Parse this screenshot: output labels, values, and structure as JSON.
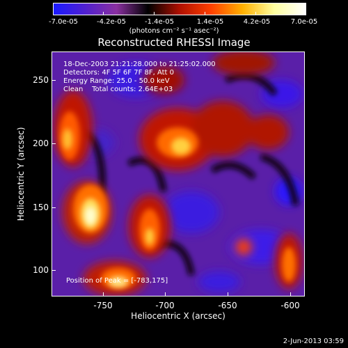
{
  "colorbar": {
    "tick_labels": [
      "-7.0e-05",
      "-4.2e-05",
      "-1.4e-05",
      "1.4e-05",
      "4.2e-05",
      "7.0e-05"
    ],
    "units": "(photons cm⁻² s⁻¹ asec⁻²)",
    "colors": [
      "#1a1aff",
      "#5020d0",
      "#8a30a0",
      "#000000",
      "#b01000",
      "#ff4000",
      "#ffb000",
      "#ffffa0",
      "#ffffff"
    ]
  },
  "plot": {
    "title": "Reconstructed RHESSI Image",
    "xlabel": "Heliocentric X (arcsec)",
    "ylabel": "Heliocentric Y (arcsec)",
    "x_ticks": [
      "-750",
      "-700",
      "-650",
      "-600"
    ],
    "y_ticks": [
      "250",
      "200",
      "150",
      "100"
    ],
    "xlim": [
      -790,
      -596
    ],
    "ylim": [
      83,
      275
    ]
  },
  "annotation": {
    "line1": "18-Dec-2003 21:21:28.000 to 21:25:02.000",
    "line2": "Detectors: 4F 5F 6F 7F 8F, Att 0",
    "line3": "Energy Range: 25.0 - 50.0 keV",
    "line4": "Clean    Total counts: 2.64E+03",
    "peak": "Position of Peak = [-783,175]"
  },
  "footer": {
    "timestamp": "2-Jun-2013 03:59"
  }
}
